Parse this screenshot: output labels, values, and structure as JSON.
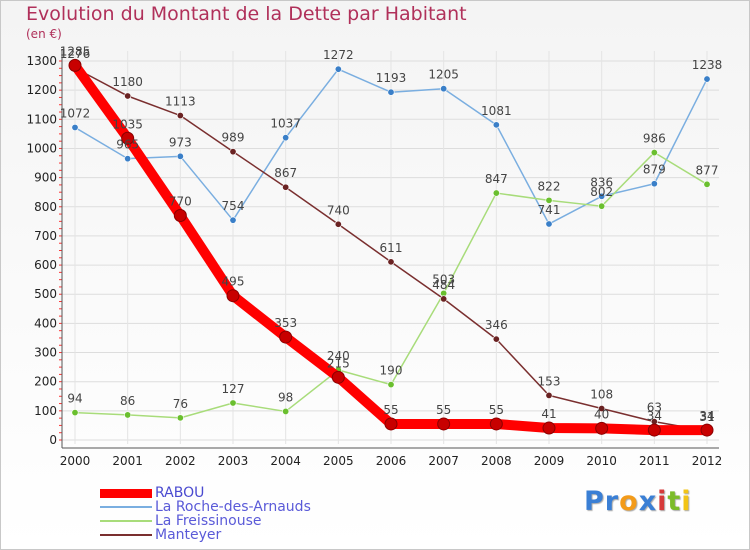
{
  "header": {
    "title": "Evolution du Montant de la Dette par Habitant",
    "unit": "(en €)"
  },
  "brand": {
    "letters": [
      "P",
      "r",
      "o",
      "x",
      "i",
      "t",
      "i"
    ],
    "colors": [
      "#3a7fd5",
      "#3a7fd5",
      "#f39b1a",
      "#3a7fd5",
      "#d63a3a",
      "#7cbc2a",
      "#f2c416"
    ]
  },
  "chart_data": {
    "type": "line",
    "title": "Evolution du Montant de la Dette par Habitant",
    "ylabel": "(en €)",
    "xlabel": "",
    "x": [
      "2000",
      "2001",
      "2002",
      "2003",
      "2004",
      "2005",
      "2006",
      "2007",
      "2008",
      "2009",
      "2010",
      "2011",
      "2012"
    ],
    "ylim": [
      0,
      1300
    ],
    "yticks": [
      "0",
      "100",
      "200",
      "300",
      "400",
      "500",
      "600",
      "700",
      "800",
      "900",
      "1000",
      "1100",
      "1200",
      "1300"
    ],
    "grid": true,
    "legend_position": "bottom-left",
    "series": [
      {
        "name": "RABOU",
        "color": "#ff0000",
        "marker": "#c80000",
        "values": [
          1285,
          1035,
          770,
          495,
          353,
          215,
          55,
          55,
          55,
          41,
          40,
          34,
          34
        ],
        "labels": [
          "1285",
          "1035",
          "770",
          "495",
          "353",
          "215",
          "55",
          "55",
          "55",
          "41",
          "40",
          "34",
          "34"
        ]
      },
      {
        "name": "La Roche-des-Arnauds",
        "color": "#7aaee0",
        "marker": "#3a7fc8",
        "values": [
          1072,
          965,
          973,
          754,
          1037,
          1272,
          1193,
          1205,
          1081,
          741,
          836,
          879,
          1238
        ],
        "labels": [
          "1072",
          "965",
          "973",
          "754",
          "1037",
          "1272",
          "1193",
          "1205",
          "1081",
          "741",
          "836",
          "879",
          "1238"
        ]
      },
      {
        "name": "La Freissinouse",
        "color": "#a8dc7a",
        "marker": "#6abf2e",
        "values": [
          94,
          86,
          76,
          127,
          98,
          240,
          190,
          503,
          847,
          822,
          802,
          986,
          877
        ],
        "labels": [
          "94",
          "86",
          "76",
          "127",
          "98",
          "240",
          "190",
          "503",
          "847",
          "822",
          "802",
          "986",
          "877"
        ]
      },
      {
        "name": "Manteyer",
        "color": "#7a2f2f",
        "marker": "#6a2222",
        "values": [
          1276,
          1180,
          1113,
          989,
          867,
          740,
          611,
          484,
          346,
          153,
          108,
          63,
          31
        ],
        "labels": [
          "1276",
          "1180",
          "1113",
          "989",
          "867",
          "740",
          "611",
          "484",
          "346",
          "153",
          "108",
          "63",
          "31"
        ]
      }
    ]
  }
}
